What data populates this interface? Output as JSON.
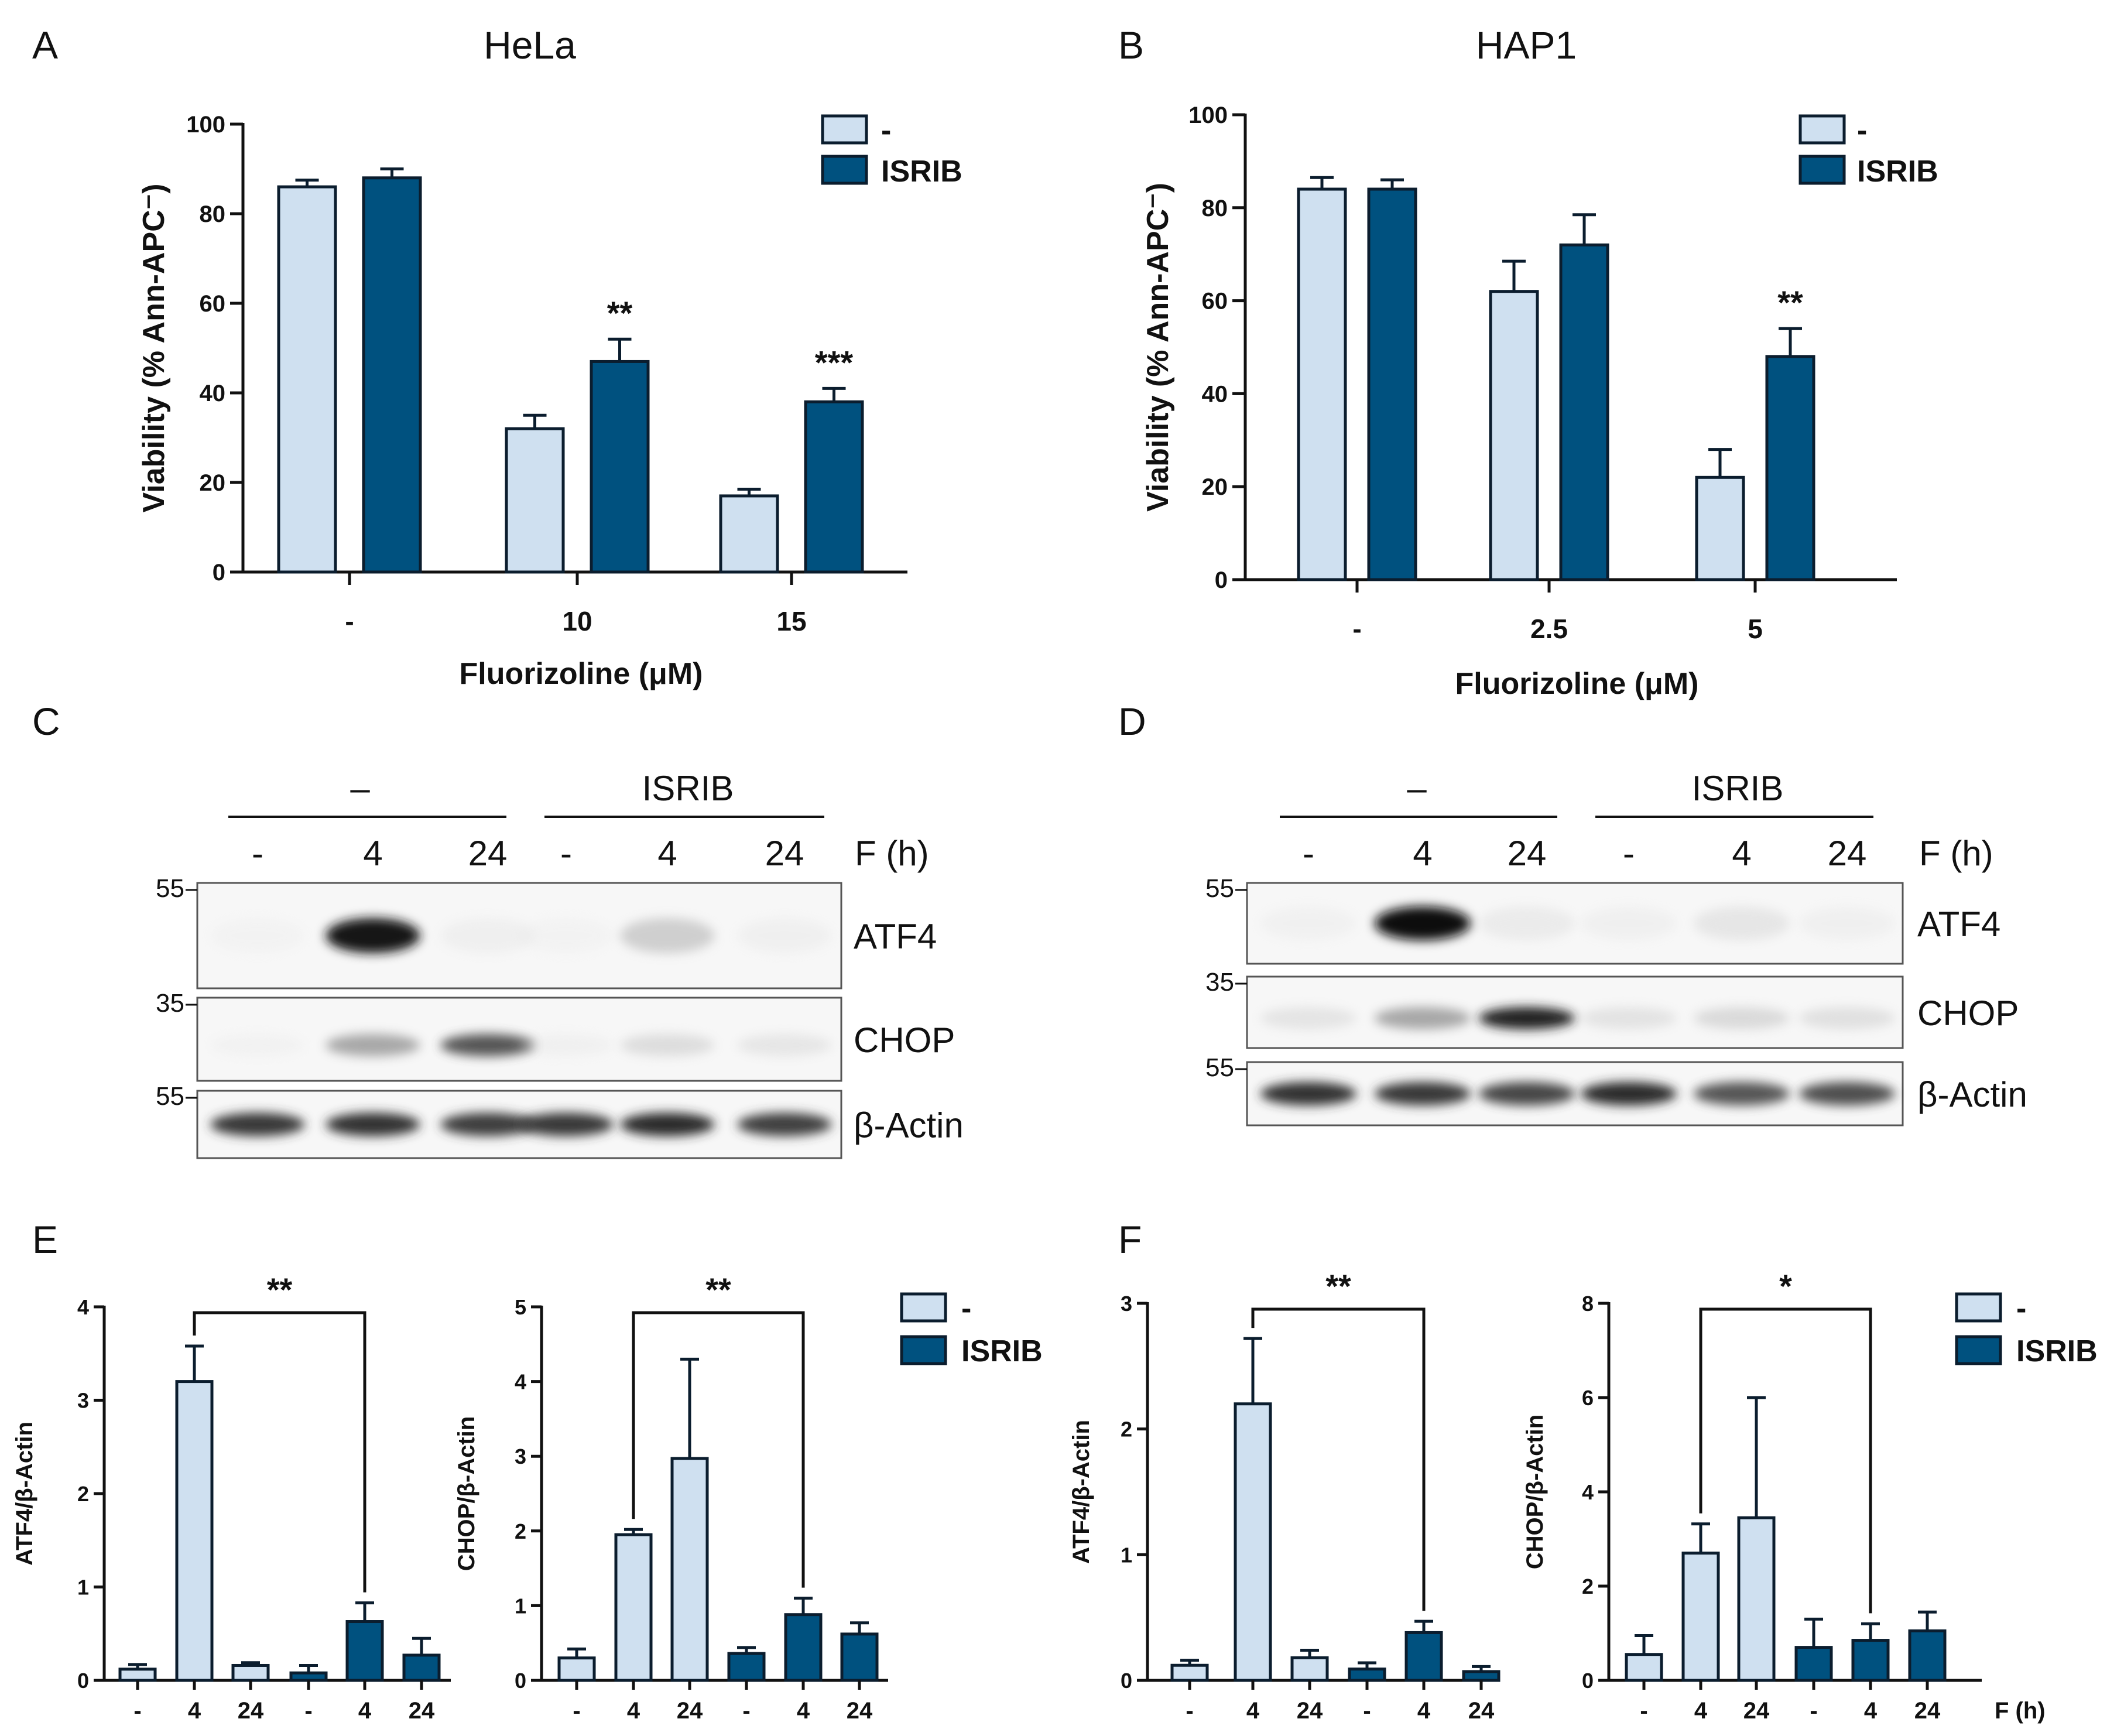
{
  "colors": {
    "light": "#cfe0f0",
    "dark": "#00517f",
    "edge": "#0b1d2e"
  },
  "panels": {
    "A": "A",
    "B": "B",
    "C": "C",
    "D": "D",
    "E": "E",
    "F": "F"
  },
  "legend": {
    "minus": "-",
    "isrib": "ISRIB"
  },
  "chart_data": [
    {
      "id": "A",
      "type": "bar",
      "title": "HeLa",
      "categories": [
        "-",
        "10",
        "15"
      ],
      "series": [
        {
          "name": "-",
          "values": [
            86,
            32,
            17
          ],
          "errors": [
            1.5,
            3,
            1.5
          ]
        },
        {
          "name": "ISRIB",
          "values": [
            88,
            47,
            38
          ],
          "errors": [
            2,
            5,
            3
          ]
        }
      ],
      "ylabel": "Viability (% Ann-APC⁻)",
      "xlabel": "Fluorizoline (μM)",
      "ylim": [
        0,
        100
      ],
      "yticks": [
        "0",
        "20",
        "40",
        "60",
        "80",
        "100"
      ],
      "significance": [
        "",
        "**",
        "***"
      ]
    },
    {
      "id": "B",
      "type": "bar",
      "title": "HAP1",
      "categories": [
        "-",
        "2.5",
        "5"
      ],
      "series": [
        {
          "name": "-",
          "values": [
            84,
            62,
            22
          ],
          "errors": [
            2.5,
            6.5,
            6
          ]
        },
        {
          "name": "ISRIB",
          "values": [
            84,
            72,
            48
          ],
          "errors": [
            2,
            6.5,
            6
          ]
        }
      ],
      "ylabel": "Viability (% Ann-APC⁻)",
      "xlabel": "Fluorizoline (μM)",
      "ylim": [
        0,
        100
      ],
      "yticks": [
        "0",
        "20",
        "40",
        "60",
        "80",
        "100"
      ],
      "significance": [
        "",
        "",
        "**"
      ]
    },
    {
      "id": "E1",
      "type": "bar",
      "categories": [
        "-",
        "4",
        "24",
        "-",
        "4",
        "24"
      ],
      "values": [
        0.12,
        3.2,
        0.16,
        0.08,
        0.63,
        0.27
      ],
      "errors": [
        0.05,
        0.38,
        0.03,
        0.08,
        0.2,
        0.18
      ],
      "groups": [
        "-",
        "-",
        "-",
        "ISRIB",
        "ISRIB",
        "ISRIB"
      ],
      "ylabel": "ATF4/β-Actin",
      "ylim": [
        0,
        4
      ],
      "yticks": [
        "0",
        "1",
        "2",
        "3",
        "4"
      ],
      "bracket": {
        "from": 1,
        "to": 4,
        "label": "**"
      }
    },
    {
      "id": "E2",
      "type": "bar",
      "categories": [
        "-",
        "4",
        "24",
        "-",
        "4",
        "24"
      ],
      "values": [
        0.3,
        1.95,
        2.97,
        0.36,
        0.88,
        0.62
      ],
      "errors": [
        0.12,
        0.07,
        1.33,
        0.08,
        0.22,
        0.15
      ],
      "groups": [
        "-",
        "-",
        "-",
        "ISRIB",
        "ISRIB",
        "ISRIB"
      ],
      "ylabel": "CHOP/β-Actin",
      "ylim": [
        0,
        5
      ],
      "yticks": [
        "0",
        "1",
        "2",
        "3",
        "4",
        "5"
      ],
      "bracket": {
        "from": 1,
        "to": 4,
        "label": "**"
      }
    },
    {
      "id": "F1",
      "type": "bar",
      "categories": [
        "-",
        "4",
        "24",
        "-",
        "4",
        "24"
      ],
      "values": [
        0.12,
        2.2,
        0.18,
        0.09,
        0.38,
        0.07
      ],
      "errors": [
        0.04,
        0.52,
        0.06,
        0.05,
        0.09,
        0.04
      ],
      "groups": [
        "-",
        "-",
        "-",
        "ISRIB",
        "ISRIB",
        "ISRIB"
      ],
      "ylabel": "ATF4/β-Actin",
      "ylim": [
        0,
        3
      ],
      "yticks": [
        "0",
        "1",
        "2",
        "3"
      ],
      "bracket": {
        "from": 1,
        "to": 4,
        "label": "**"
      }
    },
    {
      "id": "F2",
      "type": "bar",
      "categories": [
        "-",
        "4",
        "24",
        "-",
        "4",
        "24"
      ],
      "values": [
        0.55,
        2.7,
        3.45,
        0.7,
        0.85,
        1.05
      ],
      "errors": [
        0.4,
        0.62,
        2.55,
        0.6,
        0.35,
        0.4
      ],
      "groups": [
        "-",
        "-",
        "-",
        "ISRIB",
        "ISRIB",
        "ISRIB"
      ],
      "ylabel": "CHOP/β-Actin",
      "ylim": [
        0,
        8
      ],
      "yticks": [
        "0",
        "2",
        "4",
        "6",
        "8"
      ],
      "xlabel": "F (h)",
      "bracket": {
        "from": 1,
        "to": 4,
        "label": "*"
      }
    }
  ],
  "blots": [
    {
      "id": "C",
      "group_labels": [
        "–",
        "ISRIB"
      ],
      "lane_labels": [
        "-",
        "4",
        "24",
        "-",
        "4",
        "24"
      ],
      "time_label": "F (h)",
      "rows": [
        {
          "name": "ATF4",
          "marker": "55",
          "intensity": [
            0.02,
            0.95,
            0.06,
            0.02,
            0.28,
            0.05
          ]
        },
        {
          "name": "CHOP",
          "marker": "35",
          "intensity": [
            0.03,
            0.45,
            0.7,
            0.05,
            0.2,
            0.14
          ]
        },
        {
          "name": "β-Actin",
          "marker": "55",
          "intensity": [
            0.8,
            0.82,
            0.78,
            0.8,
            0.85,
            0.76
          ]
        }
      ]
    },
    {
      "id": "D",
      "group_labels": [
        "–",
        "ISRIB"
      ],
      "lane_labels": [
        "-",
        "4",
        "24",
        "-",
        "4",
        "24"
      ],
      "time_label": "F (h)",
      "rows": [
        {
          "name": "ATF4",
          "marker": "55",
          "intensity": [
            0.04,
            0.98,
            0.1,
            0.05,
            0.14,
            0.05
          ]
        },
        {
          "name": "CHOP",
          "marker": "35",
          "intensity": [
            0.15,
            0.45,
            0.9,
            0.16,
            0.22,
            0.18
          ]
        },
        {
          "name": "β-Actin",
          "marker": "55",
          "intensity": [
            0.82,
            0.8,
            0.74,
            0.86,
            0.7,
            0.72
          ]
        }
      ]
    }
  ]
}
